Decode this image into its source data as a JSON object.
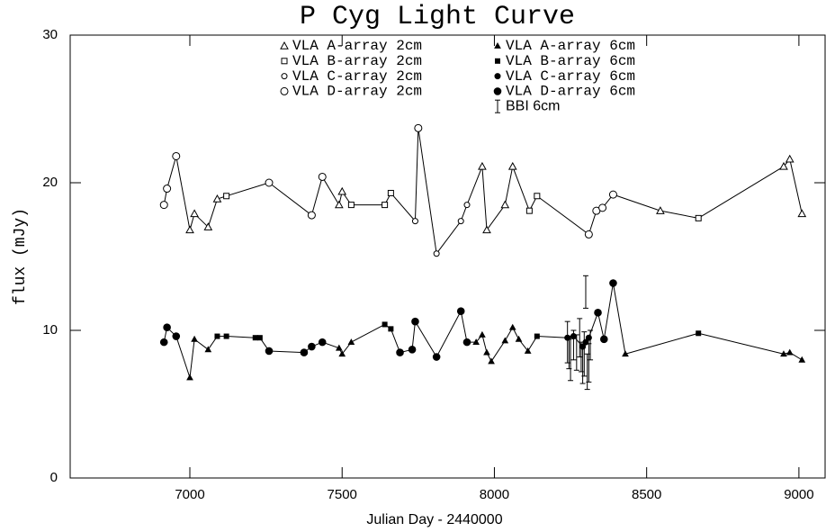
{
  "chart_data": {
    "type": "scatter",
    "title": "P Cyg Light Curve",
    "x_label": "Julian Day - 2440000",
    "y_label": "flux (mJy)",
    "xlim": [
      6607,
      9086
    ],
    "xticks": [
      7000,
      7500,
      8000,
      8500,
      9000
    ],
    "ylim": [
      0,
      30
    ],
    "yticks": [
      0,
      10,
      20,
      30
    ],
    "color": "#000000",
    "connect_lines": true,
    "series_groups": [
      {
        "series": [
          {
            "name": "VLA A-array 2cm",
            "marker": "triangle",
            "filled": false,
            "x": [
              7000,
              7015,
              7060,
              7090,
              7490,
              7500,
              7960,
              7975,
              8035,
              8060,
              8545,
              8950,
              8970,
              9010
            ],
            "values": [
              16.8,
              17.9,
              17.0,
              18.9,
              18.5,
              19.4,
              21.1,
              16.8,
              18.5,
              21.1,
              18.1,
              21.1,
              21.6,
              17.9
            ]
          },
          {
            "name": "VLA B-array 2cm",
            "marker": "square",
            "filled": false,
            "x": [
              7120,
              7530,
              7640,
              7660,
              8115,
              8140,
              8670
            ],
            "values": [
              19.1,
              18.5,
              18.5,
              19.3,
              18.1,
              19.1,
              17.6
            ]
          },
          {
            "name": "VLA C-array 2cm",
            "marker": "circle-small",
            "filled": false,
            "x": [
              7740,
              7810,
              7890,
              7910
            ],
            "values": [
              17.4,
              15.2,
              17.4,
              18.5
            ]
          },
          {
            "name": "VLA D-array 2cm",
            "marker": "circle",
            "filled": false,
            "x": [
              6915,
              6925,
              6955,
              7260,
              7400,
              7435,
              7750,
              8310,
              8335,
              8355,
              8390
            ],
            "values": [
              18.5,
              19.6,
              21.8,
              20.0,
              17.8,
              20.4,
              23.7,
              16.5,
              18.1,
              18.3,
              19.2
            ]
          }
        ]
      },
      {
        "series": [
          {
            "name": "VLA A-array 6cm",
            "marker": "triangle",
            "filled": true,
            "x": [
              7000,
              7015,
              7060,
              7490,
              7500,
              7530,
              7940,
              7960,
              7975,
              7990,
              8035,
              8060,
              8080,
              8110,
              8430,
              8950,
              8970,
              9010
            ],
            "values": [
              6.8,
              9.4,
              8.7,
              8.8,
              8.4,
              9.2,
              9.2,
              9.7,
              8.5,
              7.9,
              9.3,
              10.2,
              9.4,
              8.6,
              8.4,
              8.4,
              8.5,
              8.0
            ]
          },
          {
            "name": "VLA B-array 6cm",
            "marker": "square",
            "filled": true,
            "x": [
              7090,
              7120,
              7215,
              7230,
              7640,
              7660,
              8140,
              8670
            ],
            "values": [
              9.6,
              9.6,
              9.5,
              9.5,
              10.4,
              10.1,
              9.6,
              9.8
            ]
          },
          {
            "name": "VLA C-array 6cm",
            "marker": "circle-small",
            "filled": true,
            "x": [
              8240,
              8260,
              8290,
              8300,
              8310
            ],
            "values": [
              9.5,
              9.6,
              8.9,
              9.2,
              9.5
            ]
          },
          {
            "name": "VLA D-array 6cm",
            "marker": "circle",
            "filled": true,
            "x": [
              6915,
              6925,
              6955,
              7260,
              7375,
              7400,
              7435,
              7690,
              7730,
              7740,
              7810,
              7890,
              7910,
              8340,
              8360,
              8390
            ],
            "values": [
              9.2,
              10.2,
              9.6,
              8.6,
              8.5,
              8.9,
              9.2,
              8.5,
              8.7,
              10.6,
              8.2,
              11.3,
              9.2,
              11.2,
              9.4,
              13.2
            ]
          }
        ]
      }
    ],
    "error_series": {
      "name": "BBI 6cm",
      "x": [
        8240,
        8245,
        8250,
        8260,
        8270,
        8280,
        8285,
        8290,
        8295,
        8300,
        8305,
        8310,
        8315
      ],
      "values": [
        9.2,
        8.4,
        8.1,
        9.0,
        8.5,
        9.5,
        8.2,
        7.6,
        8.4,
        12.6,
        7.2,
        7.8,
        9.0
      ],
      "errors": [
        1.4,
        1.0,
        1.5,
        1.0,
        1.2,
        1.3,
        1.0,
        1.2,
        1.5,
        1.1,
        1.2,
        1.3,
        1.0
      ]
    }
  }
}
